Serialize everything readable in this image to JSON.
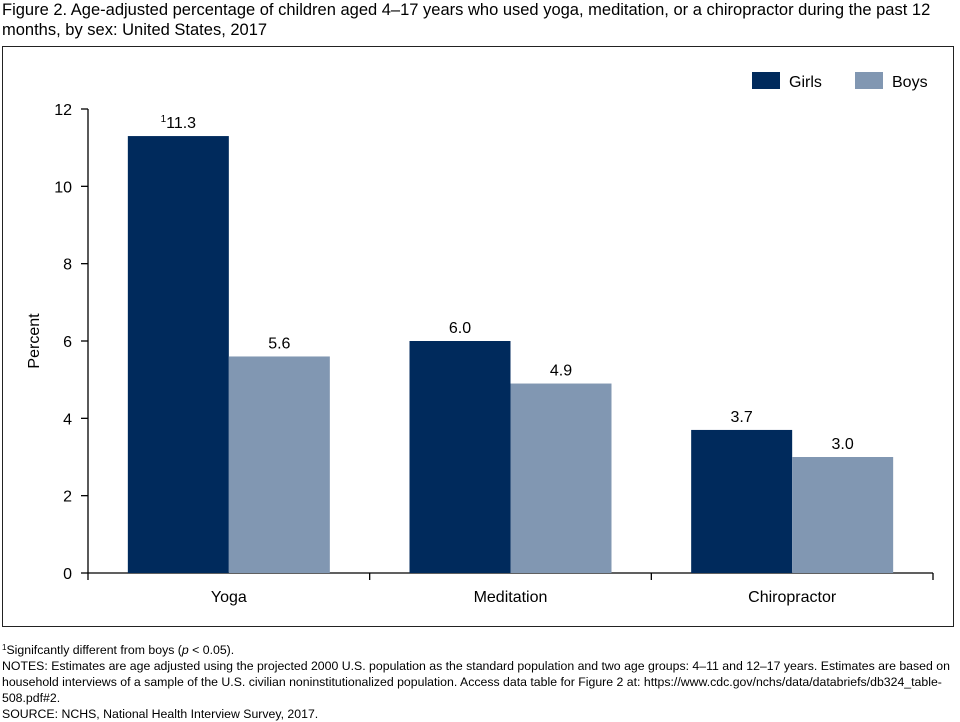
{
  "title": "Figure 2. Age-adjusted percentage of children aged 4–17 years who used yoga, meditation, or a chiropractor during the past 12 months, by sex: United States, 2017",
  "chart_data": {
    "type": "bar",
    "categories": [
      "Yoga",
      "Meditation",
      "Chiropractor"
    ],
    "series": [
      {
        "name": "Girls",
        "values": [
          11.3,
          6.0,
          3.7
        ],
        "labels": [
          "11.3",
          "6.0",
          "3.7"
        ],
        "color": "#002a5c"
      },
      {
        "name": "Boys",
        "values": [
          5.6,
          4.9,
          3.0
        ],
        "labels": [
          "5.6",
          "4.9",
          "3.0"
        ],
        "color": "#8197b2"
      }
    ],
    "annotation_marks": {
      "girls_yoga": "1"
    },
    "ylabel": "Percent",
    "xlabel": "",
    "ylim": [
      0,
      12
    ],
    "yticks": [
      "0",
      "2",
      "4",
      "6",
      "8",
      "10",
      "12"
    ],
    "ytick_values": [
      0,
      2,
      4,
      6,
      8,
      10,
      12
    ],
    "grid": false,
    "legend_position": "top-right"
  },
  "footnotes": {
    "sig_mark": "1",
    "sig_text_a": "Signifcantly different from boys (",
    "sig_p": "p",
    "sig_text_b": " < 0.05).",
    "notes": "NOTES: Estimates are age adjusted using the projected 2000 U.S. population as the standard population and two age groups: 4–11 and 12–17 years. Estimates are based on household interviews of a sample of the U.S. civilian noninstitutionalized population. Access data table for Figure 2 at: https://www.cdc.gov/nchs/data/databriefs/db324_table-508.pdf#2.",
    "source": "SOURCE: NCHS, National Health Interview Survey, 2017."
  }
}
